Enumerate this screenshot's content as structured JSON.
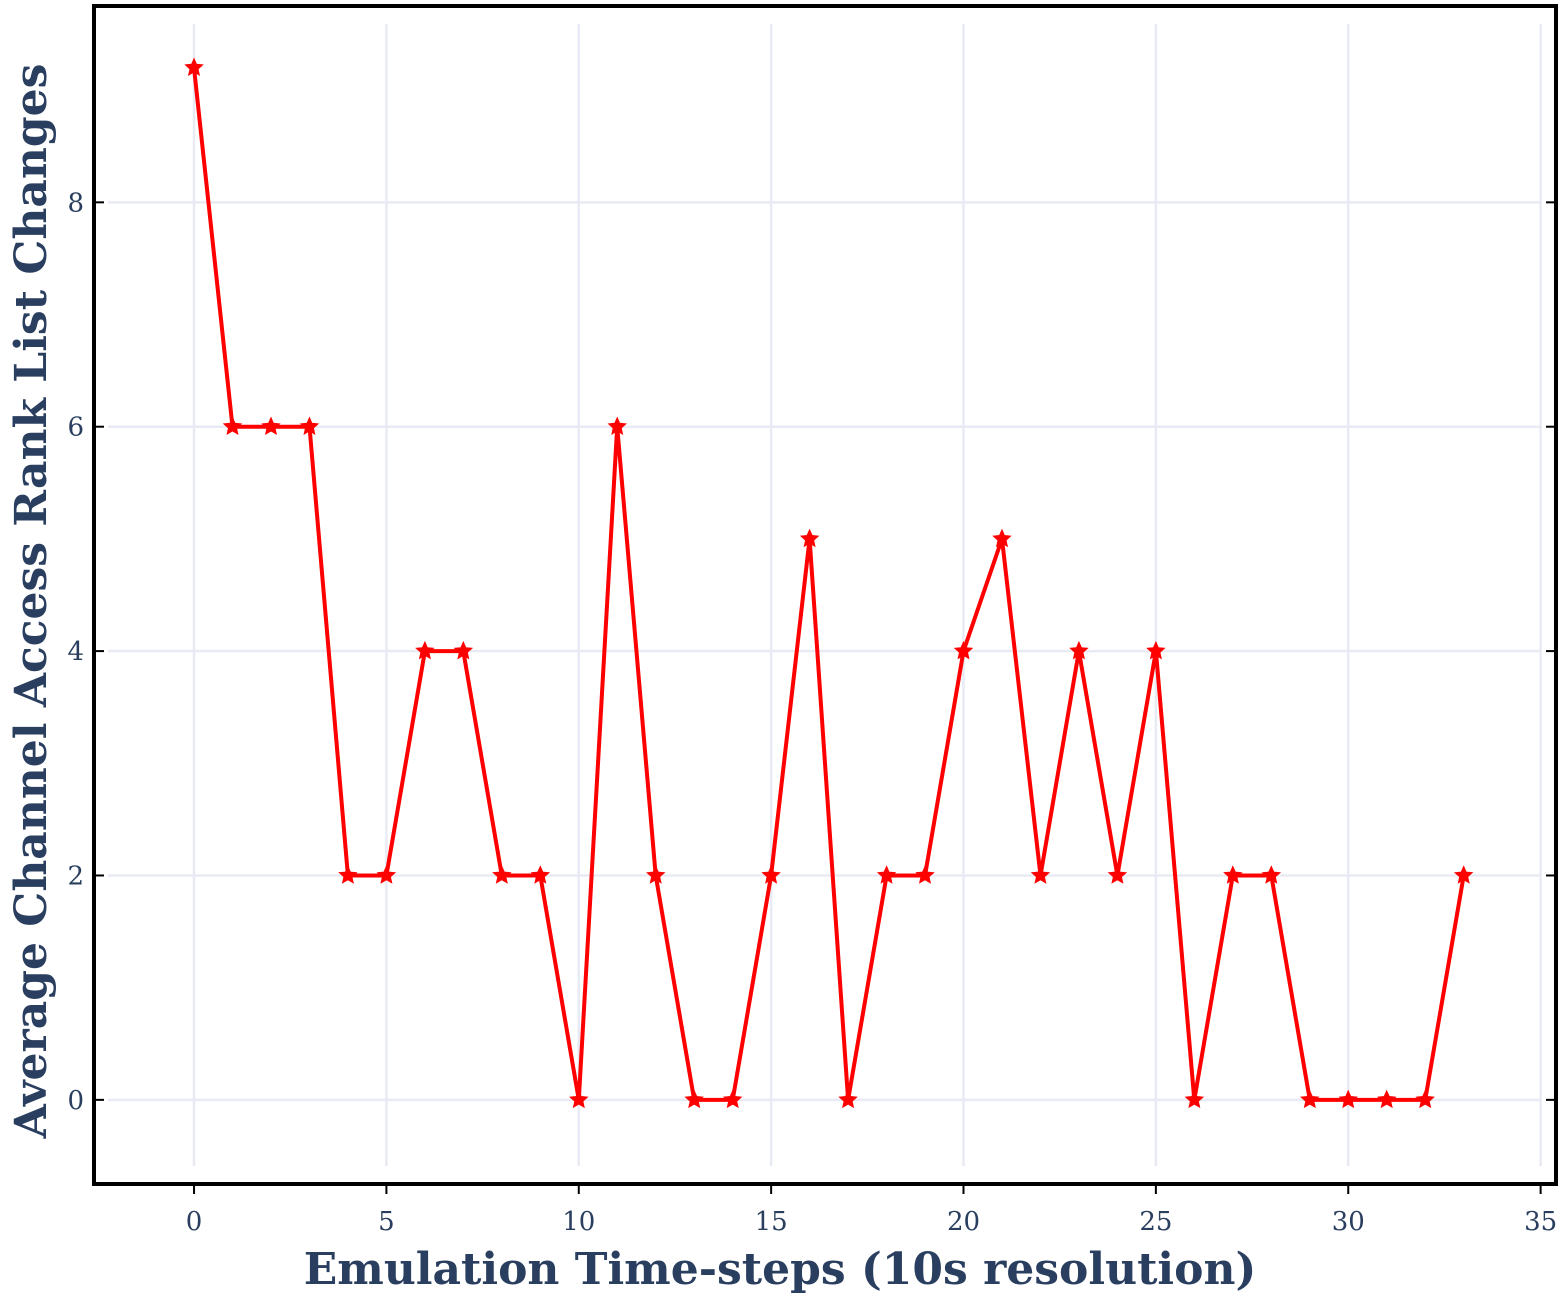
{
  "chart_data": {
    "type": "line",
    "xlabel": "Emulation Time-steps (10s resolution)",
    "ylabel": "Average Channel Access Rank List Changes",
    "xlim": [
      -2.6,
      35.4
    ],
    "ylim": [
      -0.75,
      9.75
    ],
    "xticks": [
      0,
      5,
      10,
      15,
      20,
      25,
      30,
      35
    ],
    "yticks": [
      0,
      2,
      4,
      6,
      8
    ],
    "grid": true,
    "legend": "none",
    "marker": "star",
    "color": "#ff0000",
    "series": [
      {
        "x": [
          0,
          1,
          2,
          3,
          4,
          5,
          6,
          7,
          8,
          9,
          10,
          11,
          12,
          13,
          14,
          15,
          16,
          17,
          18,
          19,
          20,
          21,
          22,
          23,
          24,
          25,
          26,
          27,
          28,
          29,
          30,
          31,
          32,
          33
        ],
        "values": [
          9.2,
          6,
          6,
          6,
          2,
          2,
          4,
          4,
          2,
          2,
          0,
          6,
          2,
          0,
          0,
          2,
          5,
          0,
          2,
          2,
          4,
          5,
          2,
          4,
          2,
          4,
          0,
          2,
          2,
          0,
          0,
          0,
          0,
          2
        ]
      }
    ]
  }
}
